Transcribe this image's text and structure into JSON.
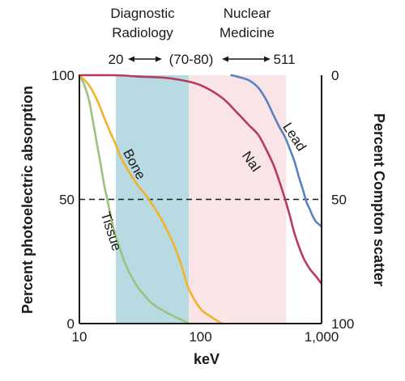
{
  "chart_data": {
    "type": "line",
    "xscale": "log",
    "xlim": [
      10,
      1000
    ],
    "ylim": [
      0,
      100
    ],
    "xlabel": "keV",
    "ylabel_left": "Percent photoelectric absorption",
    "ylabel_right": "Percent Compton scatter",
    "x_ticks": [
      10,
      100,
      1000
    ],
    "x_tick_labels": [
      "10",
      "100",
      "1,000"
    ],
    "y_ticks_left": [
      0,
      50,
      100
    ],
    "y_tick_labels_left": [
      "0",
      "50",
      "100"
    ],
    "y_ticks_right_labels": [
      "100",
      "50",
      "0"
    ],
    "reference_line": {
      "y": 50,
      "style": "dashed"
    },
    "regions": [
      {
        "name": "Diagnostic Radiology",
        "line1": "Diagnostic",
        "line2": "Radiology",
        "x_start": 20,
        "x_end": 80,
        "color": "#b8dbe3"
      },
      {
        "name": "Nuclear Medicine",
        "line1": "Nuclear",
        "line2": "Medicine",
        "x_start": 80,
        "x_end": 511,
        "color": "#f9e5e5"
      }
    ],
    "range_annotation": {
      "left": "20",
      "middle": "(70-80)",
      "right": "511"
    },
    "series": [
      {
        "name": "Tissue",
        "color": "#9cc27e",
        "x": [
          10,
          11,
          12,
          13,
          14,
          15,
          16,
          17,
          18,
          19,
          20,
          22,
          25,
          30,
          35,
          40,
          50,
          60,
          70,
          80
        ],
        "y": [
          100,
          96,
          90,
          81,
          72,
          64,
          56,
          50,
          44,
          39,
          35,
          29,
          22,
          15,
          11,
          8,
          5,
          3,
          1.5,
          0
        ]
      },
      {
        "name": "Bone",
        "color": "#f2b32a",
        "x": [
          10,
          12,
          14,
          16,
          18,
          20,
          22,
          25,
          30,
          35,
          40,
          45,
          50,
          60,
          70,
          80,
          100,
          120,
          150
        ],
        "y": [
          100,
          96,
          90,
          83,
          77,
          72,
          67,
          62,
          56,
          52,
          48,
          44,
          40,
          32,
          23,
          14,
          6,
          3,
          0
        ]
      },
      {
        "name": "NaI",
        "color": "#b63b5e",
        "x": [
          10,
          20,
          30,
          50,
          70,
          100,
          150,
          200,
          250,
          300,
          350,
          400,
          450,
          500,
          550,
          600,
          700,
          800,
          900,
          1000
        ],
        "y": [
          100,
          100,
          99.5,
          99,
          98,
          96,
          91,
          85,
          80,
          76,
          70,
          64,
          57,
          50,
          43,
          36,
          27,
          22,
          19,
          16
        ]
      },
      {
        "name": "Lead",
        "color": "#5a82c2",
        "x": [
          180,
          200,
          250,
          300,
          350,
          400,
          450,
          500,
          550,
          600,
          650,
          700,
          750,
          800,
          850,
          900,
          950,
          1000
        ],
        "y": [
          100,
          99.5,
          98,
          95,
          90,
          84,
          79,
          75,
          70,
          65,
          59,
          54,
          49,
          46,
          43,
          41,
          40,
          39
        ]
      }
    ],
    "curve_labels": [
      {
        "text": "Tissue",
        "x": 18,
        "y": 37,
        "rotate": 72
      },
      {
        "text": "Bone",
        "x": 28,
        "y": 64,
        "rotate": 62
      },
      {
        "text": "NaI",
        "x": 260,
        "y": 65,
        "rotate": 55
      },
      {
        "text": "Lead",
        "x": 590,
        "y": 75,
        "rotate": 57
      }
    ]
  }
}
